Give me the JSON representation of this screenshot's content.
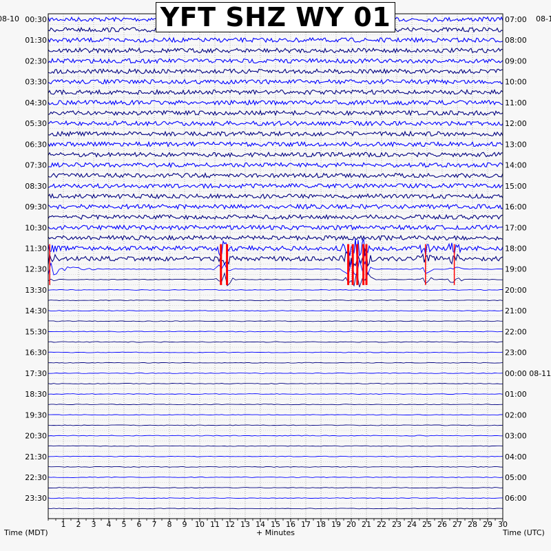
{
  "chart_data": {
    "type": "line",
    "title": "YFT SHZ WY 01",
    "xlabel": "+ Minutes",
    "left_axis_label": "Time (MDT)",
    "right_axis_label": "Time (UTC)",
    "start_date_left": "08-10",
    "start_date_right": "08-1",
    "x_range": [
      0,
      30
    ],
    "x_ticks": [
      "1",
      "2",
      "3",
      "4",
      "5",
      "6",
      "7",
      "8",
      "9",
      "10",
      "11",
      "12",
      "13",
      "14",
      "15",
      "16",
      "17",
      "18",
      "19",
      "20",
      "21",
      "22",
      "23",
      "24",
      "25",
      "26",
      "27",
      "28",
      "29",
      "30"
    ],
    "left_ticks": [
      "00:30",
      "01:30",
      "02:30",
      "03:30",
      "04:30",
      "05:30",
      "06:30",
      "07:30",
      "08:30",
      "09:30",
      "10:30",
      "11:30",
      "12:30",
      "13:30",
      "14:30",
      "15:30",
      "16:30",
      "17:30",
      "18:30",
      "19:30",
      "20:30",
      "21:30",
      "22:30",
      "23:30"
    ],
    "right_ticks": [
      "07:00",
      "08:00",
      "09:00",
      "10:00",
      "11:00",
      "12:00",
      "13:00",
      "14:00",
      "15:00",
      "16:00",
      "17:00",
      "18:00",
      "19:00",
      "20:00",
      "21:00",
      "22:00",
      "23:00",
      "00:00 08-11",
      "01:00",
      "02:00",
      "03:00",
      "04:00",
      "05:00",
      "06:00"
    ],
    "trace_count": 48,
    "trace_colors": [
      "#0000ff",
      "#000080"
    ],
    "clip_color": "#ff0000",
    "grid": "dotted",
    "noisy_traces_until_index": 23,
    "earthquake_event": {
      "traces": [
        22,
        23,
        24,
        25
      ],
      "clipped_bursts_minutes": [
        0.1,
        11.4,
        11.8,
        19.8,
        20.1,
        20.4,
        20.8,
        21.0,
        24.9,
        26.8
      ],
      "event_onset_minute": 0.0
    }
  }
}
